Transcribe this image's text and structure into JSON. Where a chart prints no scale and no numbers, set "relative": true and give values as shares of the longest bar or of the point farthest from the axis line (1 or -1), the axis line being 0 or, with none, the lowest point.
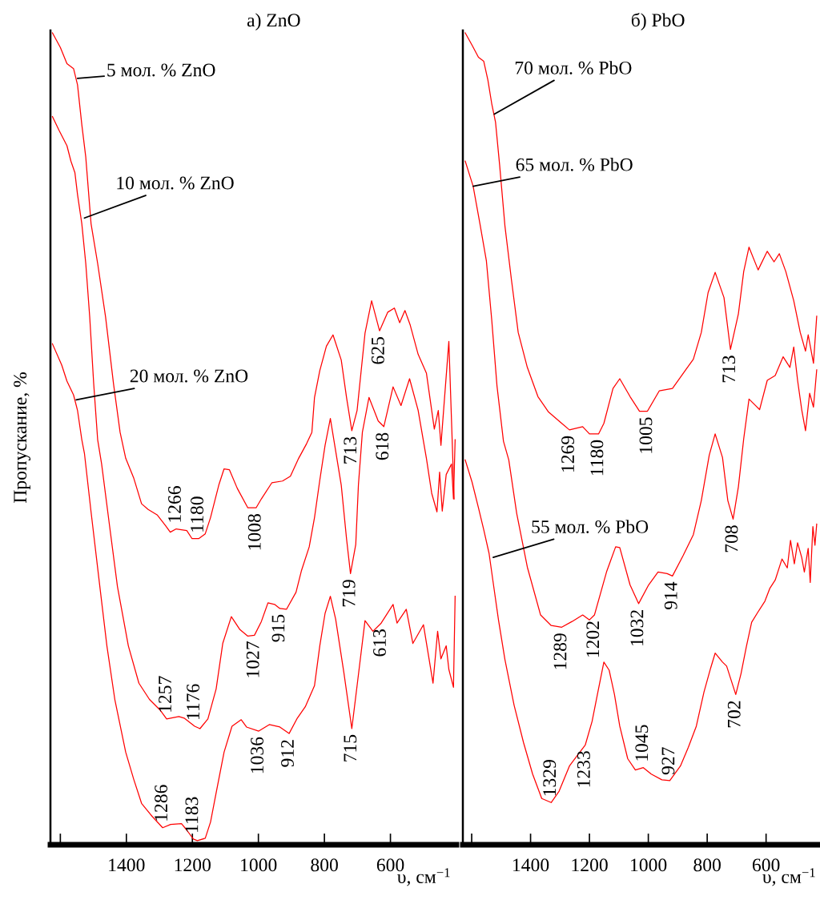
{
  "chart_data": [
    {
      "type": "line",
      "title": "а) ZnO",
      "xlabel": "υ, см$^{−1}$",
      "ylabel": "Пропускание, %",
      "relative": true,
      "xlim": [
        1630,
        400
      ],
      "xticks": [
        {
          "value": 1600,
          "label": null
        },
        1400,
        1200,
        1000,
        800,
        600
      ],
      "series": [
        {
          "color": "#ff0000",
          "x": [
            1624,
            1600,
            1580,
            1560,
            1548,
            1535,
            1523,
            1507,
            1487,
            1463,
            1439,
            1419,
            1402,
            1378,
            1354,
            1334,
            1306,
            1281,
            1267,
            1249,
            1217,
            1201,
            1181,
            1161,
            1145,
            1120,
            1104,
            1088,
            1064,
            1032,
            1007,
            991,
            959,
            927,
            903,
            878,
            854,
            838,
            830,
            814,
            794,
            774,
            749,
            733,
            717,
            701,
            677,
            657,
            633,
            608,
            588,
            572,
            556,
            540,
            516,
            491,
            467,
            455,
            447,
            423,
            407
          ],
          "values": [
            1.0,
            0.982,
            0.962,
            0.956,
            0.936,
            0.887,
            0.847,
            0.765,
            0.716,
            0.65,
            0.568,
            0.508,
            0.476,
            0.452,
            0.42,
            0.413,
            0.406,
            0.393,
            0.385,
            0.389,
            0.387,
            0.377,
            0.377,
            0.383,
            0.403,
            0.443,
            0.463,
            0.462,
            0.439,
            0.415,
            0.415,
            0.426,
            0.446,
            0.448,
            0.454,
            0.476,
            0.494,
            0.508,
            0.551,
            0.584,
            0.614,
            0.628,
            0.597,
            0.551,
            0.51,
            0.535,
            0.63,
            0.67,
            0.633,
            0.656,
            0.661,
            0.643,
            0.658,
            0.64,
            0.604,
            0.581,
            0.512,
            0.535,
            0.492,
            0.62,
            0.426
          ]
        },
        {
          "color": "#ff0000",
          "x": [
            1624,
            1604,
            1580,
            1568,
            1556,
            1548,
            1535,
            1523,
            1511,
            1499,
            1487,
            1475,
            1451,
            1427,
            1394,
            1362,
            1330,
            1298,
            1278,
            1241,
            1225,
            1193,
            1177,
            1153,
            1128,
            1108,
            1082,
            1056,
            1032,
            1012,
            991,
            971,
            951,
            935,
            915,
            886,
            870,
            846,
            830,
            814,
            798,
            782,
            749,
            733,
            721,
            705,
            697,
            685,
            665,
            637,
            620,
            592,
            568,
            542,
            516,
            491,
            475,
            459,
            451,
            443,
            431,
            415,
            409,
            404
          ],
          "values": [
            0.897,
            0.88,
            0.861,
            0.842,
            0.828,
            0.801,
            0.765,
            0.716,
            0.65,
            0.568,
            0.499,
            0.469,
            0.393,
            0.318,
            0.245,
            0.199,
            0.179,
            0.166,
            0.155,
            0.158,
            0.156,
            0.146,
            0.143,
            0.155,
            0.192,
            0.248,
            0.281,
            0.265,
            0.257,
            0.258,
            0.275,
            0.298,
            0.296,
            0.291,
            0.29,
            0.311,
            0.337,
            0.367,
            0.403,
            0.449,
            0.492,
            0.525,
            0.443,
            0.377,
            0.334,
            0.37,
            0.443,
            0.508,
            0.551,
            0.522,
            0.515,
            0.564,
            0.541,
            0.574,
            0.535,
            0.476,
            0.433,
            0.41,
            0.459,
            0.411,
            0.456,
            0.469,
            0.426,
            0.499
          ]
        },
        {
          "color": "#ff0000",
          "x": [
            1624,
            1596,
            1580,
            1560,
            1548,
            1535,
            1527,
            1507,
            1483,
            1459,
            1435,
            1402,
            1378,
            1354,
            1322,
            1290,
            1266,
            1233,
            1217,
            1197,
            1185,
            1161,
            1145,
            1128,
            1104,
            1080,
            1052,
            1036,
            999,
            967,
            935,
            907,
            882,
            858,
            830,
            814,
            798,
            782,
            766,
            741,
            717,
            701,
            677,
            653,
            628,
            592,
            580,
            552,
            532,
            500,
            483,
            471,
            457,
            447,
            431,
            423,
            409,
            404
          ],
          "values": [
            0.617,
            0.591,
            0.571,
            0.554,
            0.535,
            0.499,
            0.482,
            0.41,
            0.327,
            0.245,
            0.179,
            0.114,
            0.081,
            0.051,
            0.035,
            0.021,
            0.025,
            0.026,
            0.018,
            0.007,
            0.005,
            0.008,
            0.028,
            0.064,
            0.114,
            0.146,
            0.154,
            0.145,
            0.14,
            0.148,
            0.145,
            0.137,
            0.156,
            0.17,
            0.196,
            0.245,
            0.285,
            0.306,
            0.278,
            0.212,
            0.143,
            0.196,
            0.276,
            0.263,
            0.273,
            0.296,
            0.273,
            0.29,
            0.248,
            0.271,
            0.229,
            0.199,
            0.263,
            0.229,
            0.245,
            0.216,
            0.194,
            0.306
          ]
        }
      ],
      "annotations": [
        {
          "text": "5 мол. % ZnO",
          "x": 1548,
          "y": 0.944
        },
        {
          "text": "10 мол. % ZnO",
          "x": 1527,
          "y": 0.772
        },
        {
          "text": "20 мол. % ZnO",
          "x": 1552,
          "y": 0.548
        },
        {
          "text": "1266",
          "x": 1249,
          "y": 0.389
        },
        {
          "text": "1180",
          "x": 1181,
          "y": 0.377
        },
        {
          "text": "1008",
          "x": 1007,
          "y": 0.415
        },
        {
          "text": "713",
          "x": 717,
          "y": 0.51
        },
        {
          "text": "625",
          "x": 633,
          "y": 0.633
        },
        {
          "text": "618",
          "x": 620,
          "y": 0.515
        },
        {
          "text": "719",
          "x": 721,
          "y": 0.334
        },
        {
          "text": "1257",
          "x": 1278,
          "y": 0.155
        },
        {
          "text": "1176",
          "x": 1193,
          "y": 0.146
        },
        {
          "text": "1027",
          "x": 1012,
          "y": 0.258
        },
        {
          "text": "915",
          "x": 935,
          "y": 0.291
        },
        {
          "text": "613",
          "x": 628,
          "y": 0.273
        },
        {
          "text": "1036",
          "x": 999,
          "y": 0.14
        },
        {
          "text": "912",
          "x": 907,
          "y": 0.137
        },
        {
          "text": "715",
          "x": 717,
          "y": 0.143
        },
        {
          "text": "1286",
          "x": 1290,
          "y": 0.021
        },
        {
          "text": "1183",
          "x": 1197,
          "y": 0.007
        }
      ]
    },
    {
      "type": "line",
      "title": "б) PbO",
      "xlabel": "υ, см$^{−1}$",
      "relative": true,
      "xlim": [
        1630,
        425
      ],
      "xticks": [
        {
          "value": 1600,
          "label": null
        },
        1400,
        1200,
        1000,
        800,
        600
      ],
      "series": [
        {
          "color": "#ff0000",
          "x": [
            1622,
            1599,
            1577,
            1559,
            1545,
            1532,
            1519,
            1505,
            1487,
            1465,
            1442,
            1411,
            1375,
            1339,
            1294,
            1268,
            1223,
            1200,
            1169,
            1151,
            1120,
            1097,
            1062,
            1030,
            1003,
            963,
            918,
            873,
            847,
            820,
            797,
            773,
            743,
            721,
            694,
            676,
            658,
            627,
            596,
            573,
            555,
            533,
            506,
            484,
            466,
            457,
            439,
            428
          ],
          "values": [
            1.0,
            0.985,
            0.97,
            0.965,
            0.942,
            0.913,
            0.89,
            0.837,
            0.762,
            0.696,
            0.631,
            0.588,
            0.552,
            0.533,
            0.519,
            0.511,
            0.515,
            0.506,
            0.506,
            0.519,
            0.562,
            0.574,
            0.552,
            0.534,
            0.534,
            0.559,
            0.562,
            0.585,
            0.598,
            0.631,
            0.68,
            0.705,
            0.674,
            0.61,
            0.654,
            0.706,
            0.736,
            0.708,
            0.731,
            0.718,
            0.728,
            0.706,
            0.67,
            0.631,
            0.608,
            0.628,
            0.593,
            0.651
          ]
        },
        {
          "color": "#ff0000",
          "x": [
            1622,
            1595,
            1572,
            1550,
            1532,
            1514,
            1492,
            1474,
            1447,
            1411,
            1366,
            1330,
            1294,
            1259,
            1223,
            1200,
            1183,
            1142,
            1111,
            1097,
            1062,
            1033,
            999,
            967,
            936,
            918,
            882,
            847,
            820,
            793,
            773,
            748,
            730,
            712,
            694,
            676,
            658,
            622,
            596,
            569,
            542,
            519,
            506,
            493,
            479,
            466,
            452,
            439,
            428
          ],
          "values": [
            0.842,
            0.811,
            0.765,
            0.719,
            0.647,
            0.565,
            0.497,
            0.474,
            0.408,
            0.342,
            0.283,
            0.27,
            0.268,
            0.275,
            0.283,
            0.277,
            0.283,
            0.336,
            0.367,
            0.366,
            0.32,
            0.297,
            0.32,
            0.336,
            0.334,
            0.331,
            0.356,
            0.382,
            0.424,
            0.48,
            0.506,
            0.477,
            0.424,
            0.401,
            0.441,
            0.5,
            0.549,
            0.536,
            0.572,
            0.578,
            0.601,
            0.588,
            0.613,
            0.572,
            0.536,
            0.51,
            0.556,
            0.539,
            0.585
          ]
        },
        {
          "color": "#ff0000",
          "x": [
            1622,
            1599,
            1577,
            1559,
            1541,
            1527,
            1509,
            1487,
            1456,
            1424,
            1393,
            1362,
            1330,
            1303,
            1268,
            1241,
            1214,
            1191,
            1173,
            1151,
            1133,
            1115,
            1097,
            1070,
            1044,
            1017,
            990,
            954,
            927,
            891,
            864,
            837,
            811,
            788,
            773,
            748,
            734,
            703,
            685,
            667,
            649,
            627,
            604,
            587,
            569,
            546,
            528,
            517,
            504,
            493,
            479,
            470,
            457,
            450,
            441,
            434,
            428
          ],
          "values": [
            0.474,
            0.447,
            0.415,
            0.388,
            0.359,
            0.323,
            0.277,
            0.228,
            0.172,
            0.126,
            0.087,
            0.057,
            0.052,
            0.066,
            0.097,
            0.11,
            0.123,
            0.152,
            0.185,
            0.225,
            0.215,
            0.185,
            0.146,
            0.106,
            0.092,
            0.095,
            0.087,
            0.08,
            0.079,
            0.097,
            0.12,
            0.146,
            0.188,
            0.218,
            0.236,
            0.225,
            0.22,
            0.185,
            0.211,
            0.244,
            0.274,
            0.287,
            0.3,
            0.316,
            0.326,
            0.352,
            0.341,
            0.375,
            0.346,
            0.372,
            0.354,
            0.336,
            0.365,
            0.323,
            0.392,
            0.369,
            0.395
          ]
        }
      ],
      "annotations": [
        {
          "text": "70 мол. % PbO",
          "x": 1523,
          "y": 0.9
        },
        {
          "text": "65 мол. % PbO",
          "x": 1595,
          "y": 0.811
        },
        {
          "text": "55 мол. % PbO",
          "x": 1527,
          "y": 0.354
        },
        {
          "text": "1269",
          "x": 1268,
          "y": 0.511
        },
        {
          "text": "1180",
          "x": 1169,
          "y": 0.506
        },
        {
          "text": "1005",
          "x": 1003,
          "y": 0.534
        },
        {
          "text": "713",
          "x": 721,
          "y": 0.61
        },
        {
          "text": "708",
          "x": 712,
          "y": 0.401
        },
        {
          "text": "1289",
          "x": 1294,
          "y": 0.268
        },
        {
          "text": "1202",
          "x": 1183,
          "y": 0.283
        },
        {
          "text": "1032",
          "x": 1033,
          "y": 0.297
        },
        {
          "text": "914",
          "x": 918,
          "y": 0.331
        },
        {
          "text": "1329",
          "x": 1330,
          "y": 0.052
        },
        {
          "text": "1233",
          "x": 1214,
          "y": 0.123
        },
        {
          "text": "1045",
          "x": 1017,
          "y": 0.095
        },
        {
          "text": "927",
          "x": 927,
          "y": 0.079
        },
        {
          "text": "702",
          "x": 703,
          "y": 0.185
        }
      ]
    }
  ]
}
